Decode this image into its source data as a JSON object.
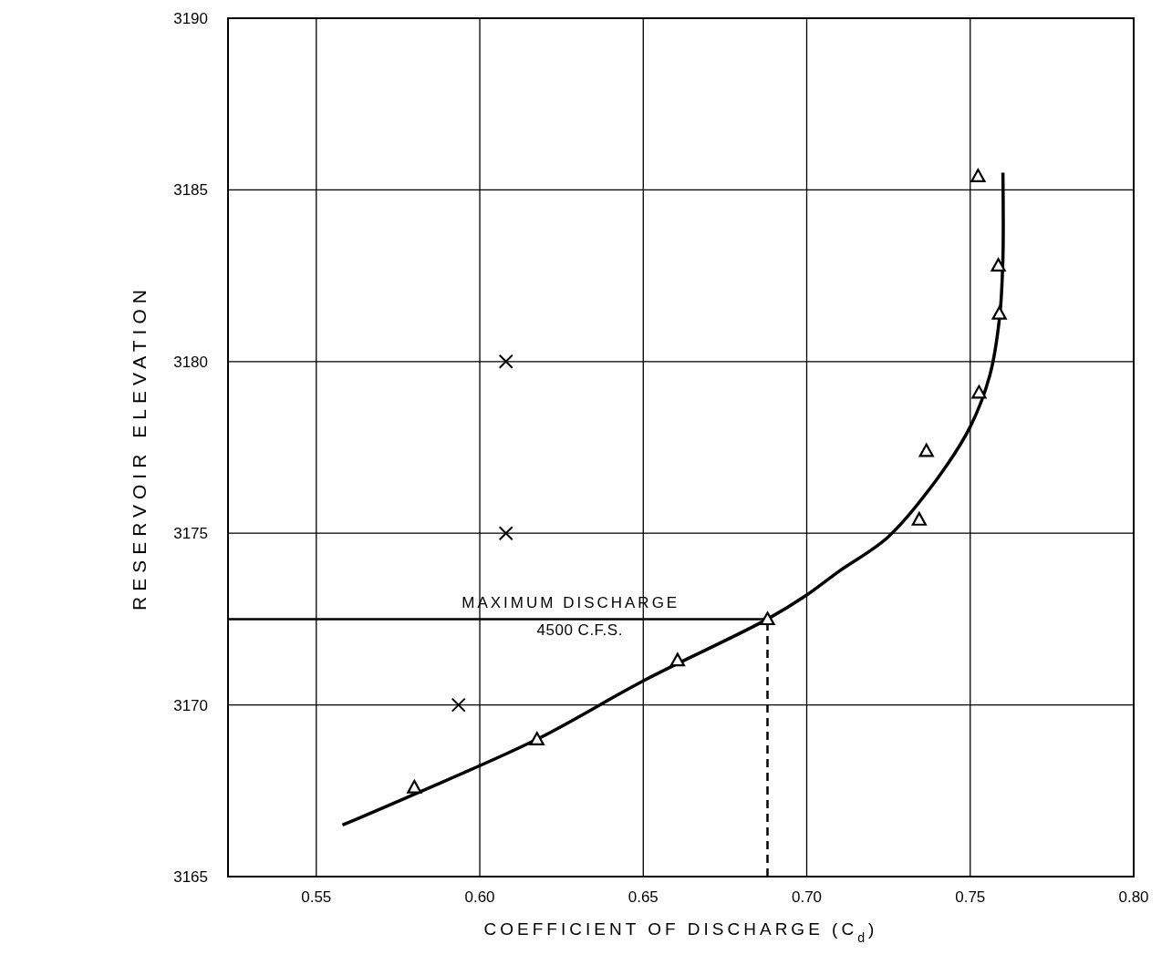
{
  "chart_data": {
    "type": "scatter",
    "xlabel": "COEFFICIENT OF DISCHARGE (C$_{d}$)",
    "ylabel": "RESERVOIR ELEVATION",
    "xlim": [
      0.523,
      0.8
    ],
    "xticks": [
      {
        "value": 0.55,
        "label": "0.55"
      },
      {
        "value": 0.6,
        "label": "0.60"
      },
      {
        "value": 0.65,
        "label": "0.65"
      },
      {
        "value": 0.7,
        "label": "0.70"
      },
      {
        "value": 0.75,
        "label": "0.75"
      },
      {
        "value": 0.8,
        "label": "0.80"
      }
    ],
    "ylim": [
      3165,
      3190
    ],
    "yticks": [
      3165,
      3170,
      3175,
      3180,
      3185,
      3190
    ],
    "grid": true,
    "series": [
      {
        "type": "line",
        "color": "#000000",
        "marker": "none",
        "line_style": "solid",
        "x": [
          0.558,
          0.58,
          0.6175,
          0.65,
          0.688,
          0.7,
          0.71,
          0.725,
          0.74,
          0.75,
          0.756,
          0.759,
          0.76,
          0.76
        ],
        "values": [
          3166.5,
          3167.4,
          3169.0,
          3170.7,
          3172.5,
          3173.2,
          3173.9,
          3174.9,
          3176.6,
          3178.1,
          3179.6,
          3181.3,
          3183.0,
          3185.5
        ]
      },
      {
        "color": "#000000",
        "marker": "triangle",
        "x": [
          0.58,
          0.6175,
          0.6605,
          0.688,
          0.7344,
          0.7366,
          0.7527,
          0.7589,
          0.7586,
          0.7524
        ],
        "values": [
          3167.6,
          3169.0,
          3171.3,
          3172.5,
          3175.4,
          3177.4,
          3179.1,
          3181.4,
          3182.8,
          3185.4
        ]
      },
      {
        "color": "#000000",
        "marker": "cross",
        "x": [
          0.608,
          0.608,
          0.5935
        ],
        "values": [
          3180.0,
          3175.0,
          3170.0
        ]
      }
    ],
    "ref_lines": [
      {
        "axis": "y",
        "value": 3172.5,
        "label": "MAXIMUM DISCHARGE\n4500 C.F.S.",
        "line_style": "solid",
        "color": "#000000"
      },
      {
        "axis": "x",
        "value": 0.688,
        "line_style": "dashed",
        "color": "#000000"
      }
    ]
  }
}
